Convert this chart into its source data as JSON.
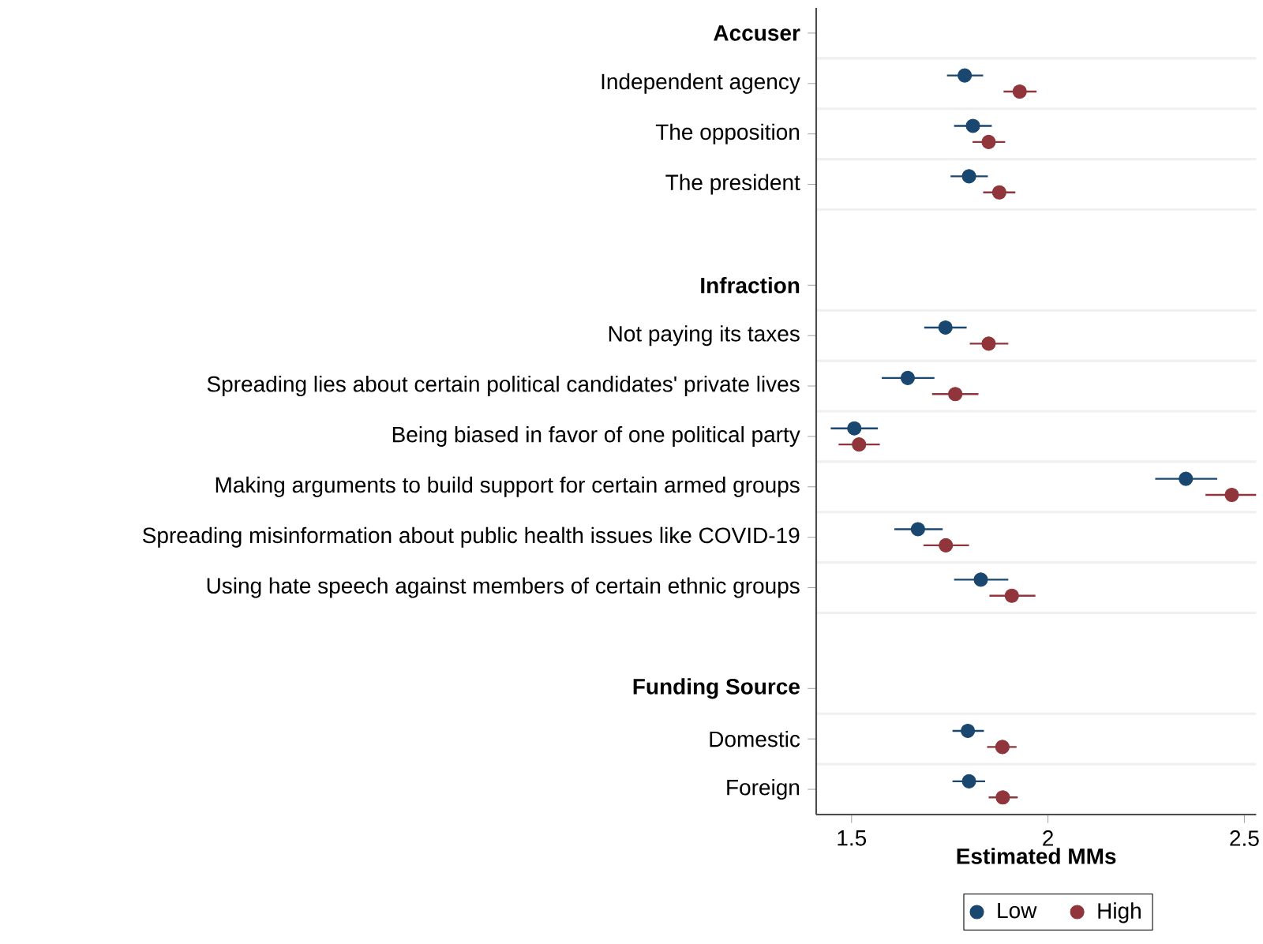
{
  "chart_data": {
    "type": "scatter",
    "orientation": "horizontal",
    "xlabel": "Estimated MMs",
    "categories": [
      "**Accuser**",
      "Independent agency",
      "The opposition",
      "The president",
      null,
      "**Infraction**",
      "Not paying its taxes",
      "Spreading lies about certain political candidates' private lives",
      "Being biased in favor of one political party",
      "Making arguments to build support for certain armed groups",
      "Spreading misinformation about public health issues like COVID-19",
      "Using hate speech against members of certain ethnic groups",
      null,
      "**Funding Source**",
      "Domestic",
      "Foreign"
    ],
    "series": [
      {
        "name": "Low",
        "color": "#1a476f",
        "values": [
          null,
          1.788,
          1.809,
          1.799,
          null,
          null,
          1.739,
          1.643,
          1.507,
          2.351,
          1.669,
          1.829,
          null,
          null,
          1.796,
          1.799
        ],
        "errors": [
          null,
          [
            1.743,
            1.835
          ],
          [
            1.761,
            1.857
          ],
          [
            1.752,
            1.847
          ],
          null,
          null,
          [
            1.685,
            1.793
          ],
          [
            1.577,
            1.711
          ],
          [
            1.447,
            1.567
          ],
          [
            2.273,
            2.431
          ],
          [
            1.609,
            1.732
          ],
          [
            1.761,
            1.899
          ],
          null,
          null,
          [
            1.757,
            1.837
          ],
          [
            1.757,
            1.84
          ]
        ]
      },
      {
        "name": "High",
        "color": "#90353b",
        "values": [
          null,
          1.928,
          1.849,
          1.876,
          null,
          null,
          1.849,
          1.764,
          1.519,
          2.468,
          1.74,
          1.908,
          null,
          null,
          1.884,
          1.885
        ],
        "errors": [
          null,
          [
            1.887,
            1.971
          ],
          [
            1.808,
            1.891
          ],
          [
            1.835,
            1.917
          ],
          null,
          null,
          [
            1.801,
            1.899
          ],
          [
            1.705,
            1.823
          ],
          [
            1.467,
            1.572
          ],
          [
            2.401,
            2.53
          ],
          [
            1.683,
            1.799
          ],
          [
            1.851,
            1.968
          ],
          null,
          null,
          [
            1.845,
            1.92
          ],
          [
            1.849,
            1.923
          ]
        ]
      }
    ],
    "xlim": [
      1.41,
      2.53
    ],
    "xticks": [
      1.5,
      2,
      2.5
    ],
    "grid": "y",
    "legend": "bottom",
    "marker": "circle"
  }
}
